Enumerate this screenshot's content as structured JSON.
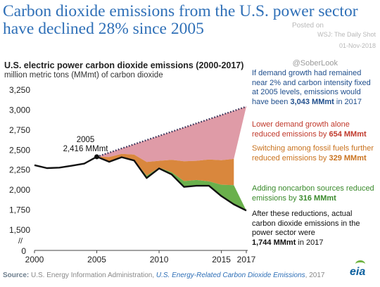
{
  "headline": "Carbon dioxide emissions from the U.S. power sector have declined 28% since 2005",
  "meta": {
    "posted": "Posted on",
    "outlet": "WSJ: The Daily Shot",
    "date": "01-Nov-2018",
    "handle": "@SoberLook"
  },
  "chart_data": {
    "type": "area",
    "title": "U.S. electric power carbon dioxide emissions (2000-2017)",
    "ylabel": "million metric tons (MMmt) of carbon dioxide",
    "ylim": [
      1500,
      3250
    ],
    "yticks": [
      3250,
      3000,
      2750,
      2500,
      2250,
      2000,
      1750,
      1500
    ],
    "ytick_labels": [
      "3,250",
      "3,000",
      "2,750",
      "2,500",
      "2,250",
      "2,000",
      "1,750",
      "1,500"
    ],
    "y_break_label": "//",
    "y_zero_label": "0",
    "xlim": [
      2000,
      2017
    ],
    "xticks": [
      2000,
      2005,
      2010,
      2015,
      2017
    ],
    "xtick_labels": [
      "2000",
      "2005",
      "2010",
      "2015",
      "2017"
    ],
    "x": [
      2000,
      2001,
      2002,
      2003,
      2004,
      2005,
      2006,
      2007,
      2008,
      2009,
      2010,
      2011,
      2012,
      2013,
      2014,
      2015,
      2016,
      2017
    ],
    "actual": [
      2311,
      2274,
      2280,
      2304,
      2330,
      2416,
      2353,
      2410,
      2369,
      2150,
      2270,
      2196,
      2039,
      2053,
      2053,
      1924,
      1821,
      1744
    ],
    "projection_x": [
      2005,
      2017
    ],
    "projection_y": [
      2416,
      3043
    ],
    "lower_demand_boundary": [
      2416,
      2412,
      2452,
      2443,
      2350,
      2365,
      2378,
      2360,
      2365,
      2382,
      2372,
      2389
    ],
    "fuel_switching_boundary": [
      2416,
      2357,
      2414,
      2374,
      2180,
      2280,
      2222,
      2111,
      2125,
      2108,
      2066,
      2060
    ],
    "series": [
      {
        "name": "Lower demand growth alone",
        "color": "#d98a98"
      },
      {
        "name": "Switching among fossil fuels",
        "color": "#d9873d"
      },
      {
        "name": "Adding noncarbon sources",
        "color": "#6ab04c"
      },
      {
        "name": "Actual emissions",
        "color": "#111111"
      }
    ],
    "annotations": {
      "year": "2005",
      "value": "2,416 MMmt"
    }
  },
  "notes": {
    "n1": "If demand growth had remained near 2% and carbon intensity fixed at 2005 levels, emissions would have been",
    "n1_bold": "3,043 MMmt",
    "n1_tail": " in 2017",
    "n2": "Lower demand growth alone reduced emissions by ",
    "n2_bold": "654 MMmt",
    "n3": "Switching among fossil fuels further reduced emissions by ",
    "n3_bold": "329 MMmt",
    "n4": "Adding noncarbon sources reduced emissions by ",
    "n4_bold": "316 MMmt",
    "n5": "After these reductions, actual carbon dioxide emissions in the power sector were",
    "n5_bold": "1,744 MMmt",
    "n5_tail": " in 2017"
  },
  "source": {
    "label": "Source:",
    "text": " U.S. Energy Information Administration, ",
    "link": "U.S. Energy-Related Carbon Dioxide Emissions",
    "year": ", 2017"
  },
  "logo": "eia"
}
